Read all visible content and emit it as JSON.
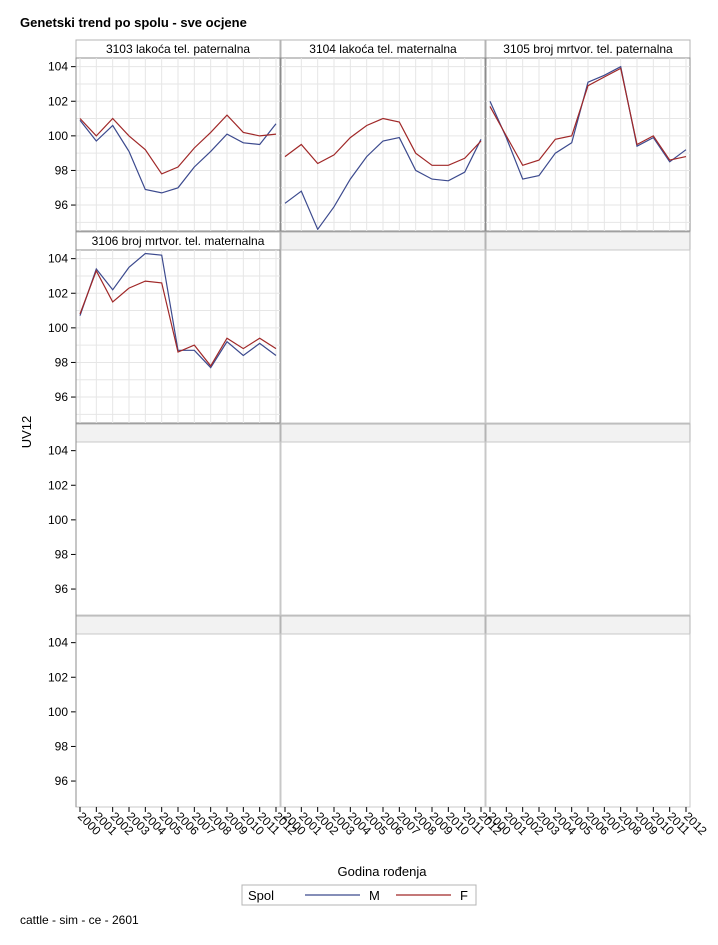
{
  "title": "Genetski trend po spolu - sve ocjene",
  "footnote": "cattle - sim - ce - 2601",
  "chart_data": {
    "type": "line",
    "ylabel": "UV12",
    "xlabel": "Godina rođenja",
    "x": [
      2000,
      2001,
      2002,
      2003,
      2004,
      2005,
      2006,
      2007,
      2008,
      2009,
      2010,
      2011,
      2012
    ],
    "ylim": [
      94.5,
      104.5
    ],
    "yticks": [
      96,
      98,
      100,
      102,
      104
    ],
    "grid": true,
    "legend": {
      "title": "Spol",
      "placement": "bottom",
      "entries": [
        {
          "name": "M",
          "color": "#3c4a8e"
        },
        {
          "name": "F",
          "color": "#a02828"
        }
      ]
    },
    "layout": {
      "columns": 3,
      "rows": 4
    },
    "panels": [
      {
        "label": "3103 lakoća tel. paternalna",
        "series": [
          {
            "name": "M",
            "values": [
              100.9,
              99.7,
              100.6,
              99.1,
              96.9,
              96.7,
              97.0,
              98.2,
              99.1,
              100.1,
              99.6,
              99.5,
              100.7
            ]
          },
          {
            "name": "F",
            "values": [
              101.0,
              100.0,
              101.0,
              100.0,
              99.2,
              97.8,
              98.2,
              99.3,
              100.2,
              101.2,
              100.2,
              100.0,
              100.1
            ]
          }
        ]
      },
      {
        "label": "3104 lakoća tel. maternalna",
        "series": [
          {
            "name": "M",
            "values": [
              96.1,
              96.8,
              94.6,
              95.9,
              97.5,
              98.8,
              99.7,
              99.9,
              98.0,
              97.5,
              97.4,
              97.9,
              99.8
            ]
          },
          {
            "name": "F",
            "values": [
              98.8,
              99.5,
              98.4,
              98.9,
              99.9,
              100.6,
              101.0,
              100.8,
              99.0,
              98.3,
              98.3,
              98.7,
              99.7
            ]
          }
        ]
      },
      {
        "label": "3105 broj mrtvor. tel. paternalna",
        "series": [
          {
            "name": "M",
            "values": [
              102.0,
              99.9,
              97.5,
              97.7,
              99.0,
              99.6,
              103.1,
              103.5,
              104.0,
              99.4,
              99.9,
              98.5,
              99.2
            ]
          },
          {
            "name": "F",
            "values": [
              101.7,
              100.0,
              98.3,
              98.6,
              99.8,
              100.0,
              102.9,
              103.4,
              103.9,
              99.5,
              100.0,
              98.6,
              98.8
            ]
          }
        ]
      },
      {
        "label": "3106 broj mrtvor. tel. maternalna",
        "series": [
          {
            "name": "M",
            "values": [
              100.7,
              103.4,
              102.2,
              103.5,
              104.3,
              104.2,
              98.7,
              98.7,
              97.7,
              99.2,
              98.4,
              99.1,
              98.4
            ]
          },
          {
            "name": "F",
            "values": [
              100.8,
              103.3,
              101.5,
              102.3,
              102.7,
              102.6,
              98.6,
              99.0,
              97.8,
              99.4,
              98.8,
              99.4,
              98.8
            ]
          }
        ]
      }
    ]
  }
}
